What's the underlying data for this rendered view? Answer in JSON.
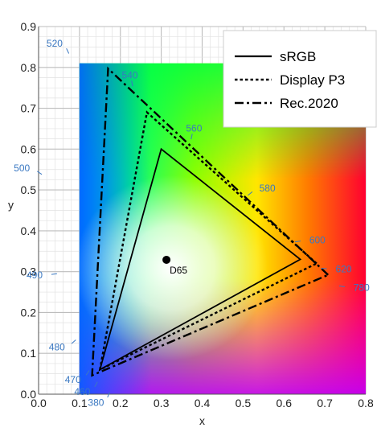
{
  "chart_data": {
    "type": "line",
    "title": "",
    "xlabel": "x",
    "ylabel": "y",
    "xlim": [
      0.0,
      0.8
    ],
    "ylim": [
      0.0,
      0.9
    ],
    "x_ticks": [
      "0.0",
      "0.1",
      "0.2",
      "0.3",
      "0.4",
      "0.5",
      "0.6",
      "0.7",
      "0.8"
    ],
    "y_ticks": [
      "0.0",
      "0.1",
      "0.2",
      "0.3",
      "0.4",
      "0.5",
      "0.6",
      "0.7",
      "0.8",
      "0.9"
    ],
    "grid": true,
    "legend_position": "top-right",
    "series": [
      {
        "name": "sRGB",
        "style": "solid",
        "points": [
          [
            0.64,
            0.33
          ],
          [
            0.3,
            0.6
          ],
          [
            0.15,
            0.06
          ]
        ]
      },
      {
        "name": "Display P3",
        "style": "dotted",
        "points": [
          [
            0.68,
            0.32
          ],
          [
            0.265,
            0.69
          ],
          [
            0.15,
            0.06
          ]
        ]
      },
      {
        "name": "Rec.2020",
        "style": "dashdot",
        "points": [
          [
            0.708,
            0.292
          ],
          [
            0.17,
            0.797
          ],
          [
            0.131,
            0.046
          ]
        ]
      }
    ],
    "white_point": {
      "label": "D65",
      "x": 0.3127,
      "y": 0.329
    },
    "spectral_locus_labels": [
      {
        "label": "460",
        "x": 0.144,
        "y": 0.03
      },
      {
        "label": "470",
        "x": 0.124,
        "y": 0.058
      },
      {
        "label": "480",
        "x": 0.091,
        "y": 0.133
      },
      {
        "label": "490",
        "x": 0.045,
        "y": 0.295
      },
      {
        "label": "500",
        "x": 0.008,
        "y": 0.538
      },
      {
        "label": "520",
        "x": 0.074,
        "y": 0.834
      },
      {
        "label": "540",
        "x": 0.23,
        "y": 0.754
      },
      {
        "label": "560",
        "x": 0.373,
        "y": 0.624
      },
      {
        "label": "580",
        "x": 0.512,
        "y": 0.487
      },
      {
        "label": "600",
        "x": 0.627,
        "y": 0.373
      },
      {
        "label": "620",
        "x": 0.691,
        "y": 0.308
      },
      {
        "label": "380",
        "x": 0.174,
        "y": 0.005
      },
      {
        "label": "780",
        "x": 0.735,
        "y": 0.265
      }
    ]
  }
}
